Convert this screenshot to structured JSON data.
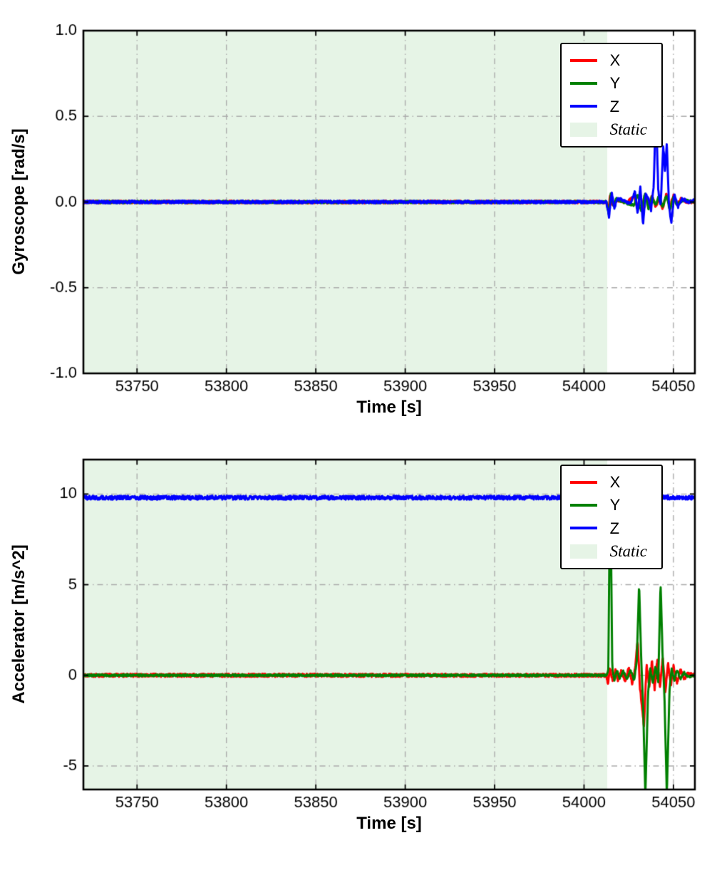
{
  "figure": {
    "background": "#ffffff",
    "grid_color": "#acacac",
    "spine_color": "#000000",
    "static_fill_color": "#e6f4e6"
  },
  "chart_data": [
    {
      "type": "line",
      "title": "",
      "xlabel": "Time [s]",
      "ylabel": "Gyroscope [rad/s]",
      "xlim": [
        53720,
        54062
      ],
      "ylim": [
        -1.0,
        1.0
      ],
      "xticks": [
        53750,
        53800,
        53850,
        53900,
        53950,
        54000,
        54050
      ],
      "xtick_labels": [
        "53750",
        "53800",
        "53850",
        "53900",
        "53950",
        "54000",
        "54050"
      ],
      "yticks": [
        -1.0,
        -0.5,
        0.0,
        0.5,
        1.0
      ],
      "ytick_labels": [
        "-1.0",
        "-0.5",
        "0.0",
        "0.5",
        "1.0"
      ],
      "grid": true,
      "legend": {
        "position": "upper right",
        "entries": [
          {
            "label": "X",
            "color": "#ff0000",
            "type": "line"
          },
          {
            "label": "Y",
            "color": "#008000",
            "type": "line"
          },
          {
            "label": "Z",
            "color": "#0000ff",
            "type": "line"
          },
          {
            "label": "Static",
            "color": "#e6f4e6",
            "type": "patch",
            "italic": true
          }
        ]
      },
      "static_region": {
        "label": "Static",
        "start": 53720,
        "end": 54013,
        "color": "#e6f4e6"
      },
      "series": [
        {
          "name": "X",
          "color": "#ff0000",
          "noise": 0.008,
          "anchors": [
            [
              53720,
              0
            ],
            [
              54012.5,
              0
            ],
            [
              54013.5,
              -0.055
            ],
            [
              54014.5,
              0.035
            ],
            [
              54016,
              -0.02
            ],
            [
              54018,
              0.01
            ],
            [
              54024,
              0
            ],
            [
              54028,
              0.03
            ],
            [
              54030,
              -0.04
            ],
            [
              54031.5,
              0.05
            ],
            [
              54033,
              -0.05
            ],
            [
              54034.5,
              0.04
            ],
            [
              54036,
              -0.03
            ],
            [
              54038,
              0.04
            ],
            [
              54040,
              -0.03
            ],
            [
              54042,
              0.02
            ],
            [
              54044,
              -0.04
            ],
            [
              54046,
              0.05
            ],
            [
              54048,
              -0.03
            ],
            [
              54050,
              0.04
            ],
            [
              54052,
              -0.02
            ],
            [
              54054,
              0.02
            ],
            [
              54057,
              0
            ],
            [
              54062,
              0
            ]
          ]
        },
        {
          "name": "Y",
          "color": "#008000",
          "noise": 0.007,
          "anchors": [
            [
              53720,
              0
            ],
            [
              54012.5,
              0
            ],
            [
              54013.8,
              -0.075
            ],
            [
              54015,
              0.05
            ],
            [
              54016.5,
              -0.03
            ],
            [
              54018,
              0.02
            ],
            [
              54022,
              0
            ],
            [
              54028,
              -0.02
            ],
            [
              54030,
              0.05
            ],
            [
              54032,
              -0.06
            ],
            [
              54034,
              0.05
            ],
            [
              54036,
              -0.04
            ],
            [
              54038,
              0.03
            ],
            [
              54040,
              -0.02
            ],
            [
              54042,
              0.04
            ],
            [
              54044,
              -0.03
            ],
            [
              54046,
              0.04
            ],
            [
              54048,
              -0.05
            ],
            [
              54050,
              0.03
            ],
            [
              54052,
              -0.02
            ],
            [
              54055,
              0.01
            ],
            [
              54062,
              0
            ]
          ]
        },
        {
          "name": "Z",
          "color": "#0000ff",
          "noise": 0.008,
          "anchors": [
            [
              53720,
              0
            ],
            [
              54012.5,
              0
            ],
            [
              54014,
              -0.09
            ],
            [
              54015.5,
              0.06
            ],
            [
              54017,
              -0.04
            ],
            [
              54018.5,
              0.02
            ],
            [
              54022,
              0.01
            ],
            [
              54026,
              -0.01
            ],
            [
              54028.5,
              0.06
            ],
            [
              54030,
              -0.07
            ],
            [
              54031.5,
              0.09
            ],
            [
              54033,
              -0.13
            ],
            [
              54034.5,
              0.05
            ],
            [
              54036,
              0.02
            ],
            [
              54037.5,
              -0.05
            ],
            [
              54039,
              0.1
            ],
            [
              54040.2,
              0.56
            ],
            [
              54041.5,
              0.07
            ],
            [
              54042.8,
              -0.03
            ],
            [
              54044.3,
              0.33
            ],
            [
              54045.3,
              0.18
            ],
            [
              54046.3,
              0.34
            ],
            [
              54047.5,
              -0.02
            ],
            [
              54048.8,
              -0.12
            ],
            [
              54050.5,
              0.05
            ],
            [
              54052.5,
              -0.03
            ],
            [
              54055,
              0.02
            ],
            [
              54058,
              0
            ],
            [
              54062,
              0.01
            ]
          ]
        }
      ]
    },
    {
      "type": "line",
      "title": "",
      "xlabel": "Time [s]",
      "ylabel": "Accelerator [m/s^2]",
      "xlim": [
        53720,
        54062
      ],
      "ylim": [
        -6.3,
        11.9
      ],
      "xticks": [
        53750,
        53800,
        53850,
        53900,
        53950,
        54000,
        54050
      ],
      "xtick_labels": [
        "53750",
        "53800",
        "53850",
        "53900",
        "53950",
        "54000",
        "54050"
      ],
      "yticks": [
        -5,
        0,
        5,
        10
      ],
      "ytick_labels": [
        "-5",
        "0",
        "5",
        "10"
      ],
      "grid": true,
      "legend": {
        "position": "upper right",
        "entries": [
          {
            "label": "X",
            "color": "#ff0000",
            "type": "line"
          },
          {
            "label": "Y",
            "color": "#008000",
            "type": "line"
          },
          {
            "label": "Z",
            "color": "#0000ff",
            "type": "line"
          },
          {
            "label": "Static",
            "color": "#e6f4e6",
            "type": "patch",
            "italic": true
          }
        ]
      },
      "static_region": {
        "label": "Static",
        "start": 53720,
        "end": 54013,
        "color": "#e6f4e6"
      },
      "series": [
        {
          "name": "X",
          "color": "#ff0000",
          "noise": 0.09,
          "anchors": [
            [
              53720,
              0
            ],
            [
              54012.5,
              0
            ],
            [
              54013.5,
              -0.5
            ],
            [
              54014.5,
              0.45
            ],
            [
              54016,
              -0.35
            ],
            [
              54017.5,
              0.3
            ],
            [
              54019,
              -0.25
            ],
            [
              54021,
              0.3
            ],
            [
              54023,
              -0.35
            ],
            [
              54025,
              0.4
            ],
            [
              54027,
              -0.45
            ],
            [
              54028.8,
              0.6
            ],
            [
              54030,
              2.0
            ],
            [
              54031.2,
              -0.6
            ],
            [
              54033.5,
              -2.8
            ],
            [
              54035,
              0.6
            ],
            [
              54036.5,
              -0.7
            ],
            [
              54038,
              0.8
            ],
            [
              54039.5,
              -0.8
            ],
            [
              54041,
              0.9
            ],
            [
              54042.5,
              -0.7
            ],
            [
              54044,
              1.0
            ],
            [
              54045.5,
              -0.9
            ],
            [
              54047,
              0.7
            ],
            [
              54048.5,
              -0.6
            ],
            [
              54050,
              0.5
            ],
            [
              54052,
              -0.4
            ],
            [
              54054,
              0.3
            ],
            [
              54056,
              -0.2
            ],
            [
              54058,
              0.1
            ],
            [
              54062,
              0
            ]
          ]
        },
        {
          "name": "Y",
          "color": "#008000",
          "noise": 0.05,
          "anchors": [
            [
              53720,
              0
            ],
            [
              54012.8,
              0
            ],
            [
              54013.6,
              0.3
            ],
            [
              54014.6,
              11.7
            ],
            [
              54015.8,
              0.4
            ],
            [
              54017,
              -0.3
            ],
            [
              54018.5,
              0.3
            ],
            [
              54020,
              -0.2
            ],
            [
              54022,
              0.25
            ],
            [
              54024,
              -0.25
            ],
            [
              54026,
              0.3
            ],
            [
              54028,
              -0.3
            ],
            [
              54029.5,
              0.8
            ],
            [
              54030.8,
              5.05
            ],
            [
              54032,
              0.8
            ],
            [
              54033,
              -1.5
            ],
            [
              54034.3,
              -6.6
            ],
            [
              54035.8,
              -1.0
            ],
            [
              54037,
              0.4
            ],
            [
              54038.5,
              -0.4
            ],
            [
              54040,
              0.5
            ],
            [
              54041.5,
              -0.4
            ],
            [
              54042.8,
              5.1
            ],
            [
              54044,
              0.9
            ],
            [
              54045,
              -1.2
            ],
            [
              54046.3,
              -6.6
            ],
            [
              54047.8,
              -0.8
            ],
            [
              54049,
              0.4
            ],
            [
              54050.5,
              -0.3
            ],
            [
              54052,
              0.3
            ],
            [
              54054,
              -0.2
            ],
            [
              54056,
              0.15
            ],
            [
              54058,
              -0.1
            ],
            [
              54062,
              0
            ]
          ]
        },
        {
          "name": "Z",
          "color": "#0000ff",
          "noise": 0.11,
          "anchors": [
            [
              53720,
              9.8
            ],
            [
              54013,
              9.8
            ],
            [
              54015,
              9.7
            ],
            [
              54017,
              9.9
            ],
            [
              54020,
              9.78
            ],
            [
              54025,
              9.82
            ],
            [
              54030,
              9.75
            ],
            [
              54035,
              9.85
            ],
            [
              54040,
              9.78
            ],
            [
              54045,
              9.82
            ],
            [
              54050,
              9.8
            ],
            [
              54062,
              9.8
            ]
          ]
        }
      ]
    }
  ]
}
